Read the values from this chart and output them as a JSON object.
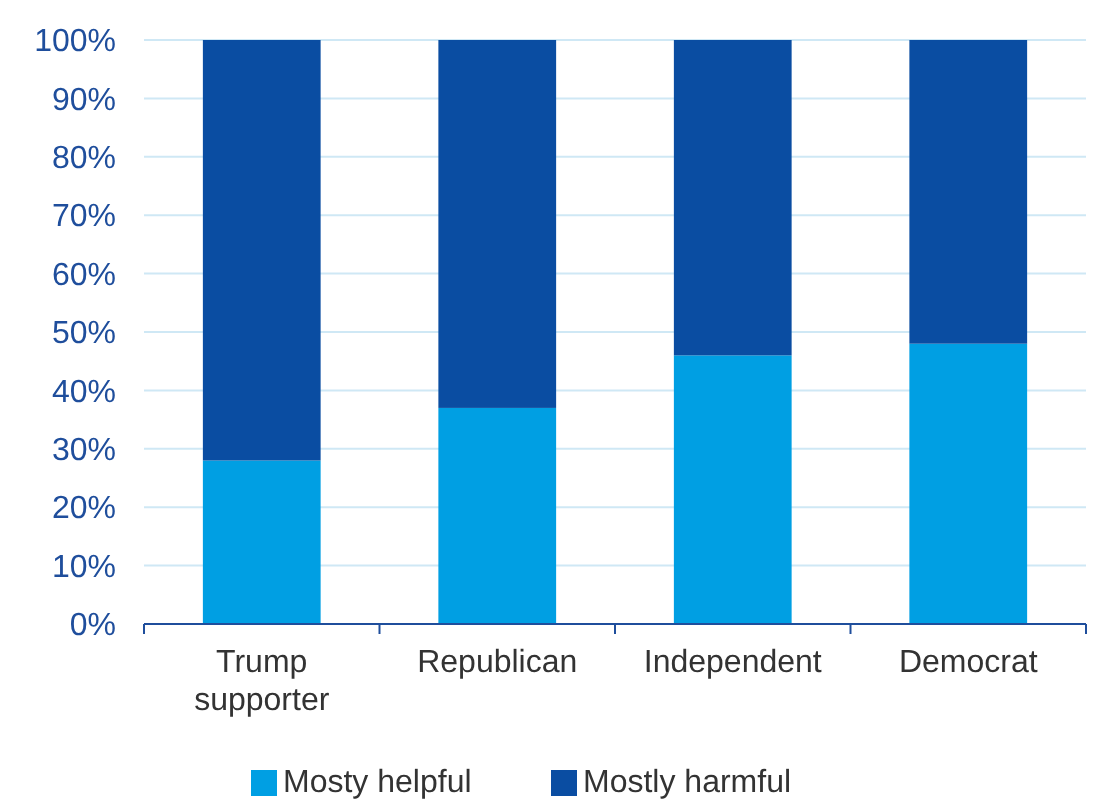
{
  "chart_data": {
    "type": "bar",
    "stacked": true,
    "categories": [
      "Trump supporter",
      "Republican",
      "Independent",
      "Democrat"
    ],
    "series": [
      {
        "name": "Mosty helpful",
        "color": "#009fe3",
        "values": [
          28,
          37,
          46,
          48
        ]
      },
      {
        "name": "Mostly harmful",
        "color": "#0a4da2",
        "values": [
          72,
          63,
          54,
          52
        ]
      }
    ],
    "ylim": [
      0,
      100
    ],
    "yticks": [
      {
        "value": 0,
        "label": "0%"
      },
      {
        "value": 10,
        "label": "10%"
      },
      {
        "value": 20,
        "label": "20%"
      },
      {
        "value": 30,
        "label": "30%"
      },
      {
        "value": 40,
        "label": "40%"
      },
      {
        "value": 50,
        "label": "50%"
      },
      {
        "value": 60,
        "label": "60%"
      },
      {
        "value": 70,
        "label": "70%"
      },
      {
        "value": 80,
        "label": "80%"
      },
      {
        "value": 90,
        "label": "90%"
      },
      {
        "value": 100,
        "label": "100%"
      }
    ],
    "grid": "y",
    "legend": "bottom"
  }
}
